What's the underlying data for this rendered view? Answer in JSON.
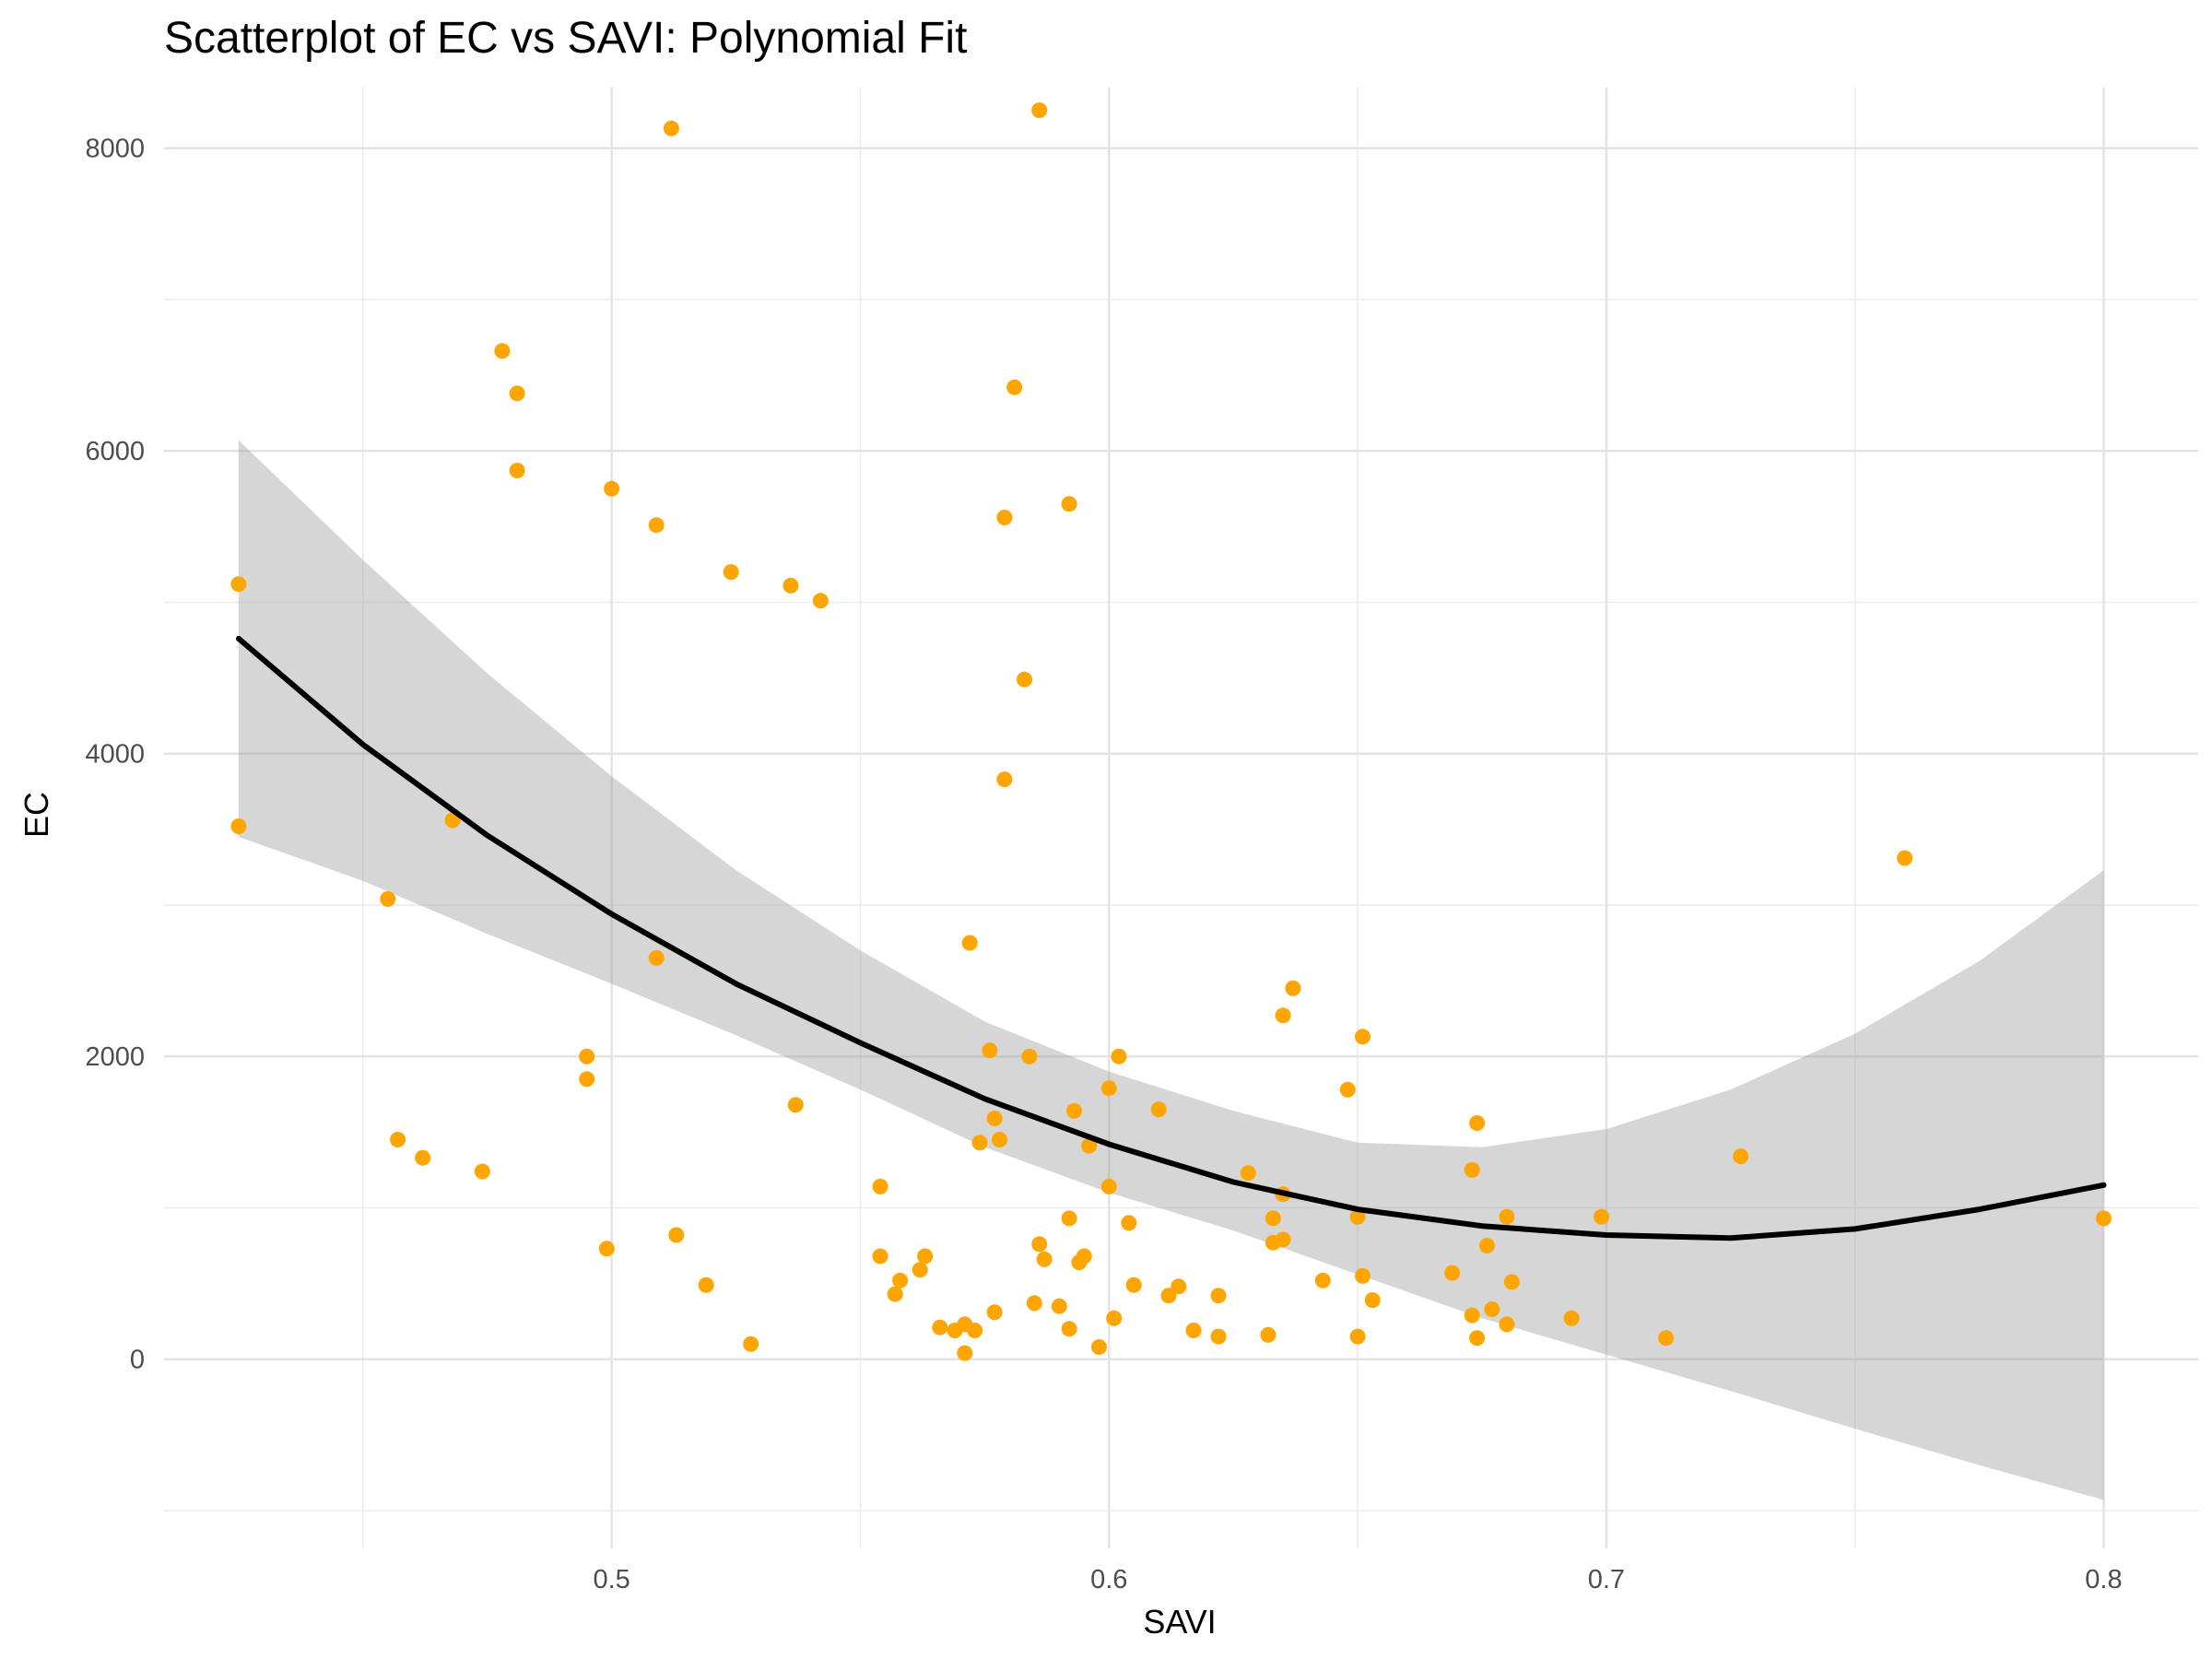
{
  "chart_data": {
    "type": "scatter",
    "title": "Scatterplot of EC vs SAVI: Polynomial Fit",
    "xlabel": "SAVI",
    "ylabel": "EC",
    "xlim": [
      0.41,
      0.819
    ],
    "ylim": [
      -1250,
      8400
    ],
    "x_ticks": [
      0.5,
      0.6,
      0.7,
      0.8
    ],
    "x_tick_labels": [
      "0.5",
      "0.6",
      "0.7",
      "0.8"
    ],
    "y_ticks": [
      0,
      2000,
      4000,
      6000,
      8000
    ],
    "y_tick_labels": [
      "0",
      "2000",
      "4000",
      "6000",
      "8000"
    ],
    "grid": true,
    "legend": "none",
    "colors": {
      "points": "#FFA500",
      "fit": "#000000",
      "band": "#999999"
    },
    "series": [
      {
        "points": [
          [
            0.425,
            5120
          ],
          [
            0.425,
            3520
          ],
          [
            0.455,
            3040
          ],
          [
            0.457,
            1450
          ],
          [
            0.462,
            1330
          ],
          [
            0.468,
            3560
          ],
          [
            0.474,
            1240
          ],
          [
            0.478,
            6660
          ],
          [
            0.481,
            6380
          ],
          [
            0.481,
            5870
          ],
          [
            0.495,
            2000
          ],
          [
            0.495,
            1850
          ],
          [
            0.499,
            730
          ],
          [
            0.5,
            5750
          ],
          [
            0.509,
            5510
          ],
          [
            0.509,
            2650
          ],
          [
            0.512,
            8130
          ],
          [
            0.513,
            820
          ],
          [
            0.519,
            490
          ],
          [
            0.524,
            5200
          ],
          [
            0.528,
            100
          ],
          [
            0.536,
            5110
          ],
          [
            0.537,
            1680
          ],
          [
            0.542,
            5010
          ],
          [
            0.554,
            1140
          ],
          [
            0.554,
            680
          ],
          [
            0.557,
            430
          ],
          [
            0.558,
            520
          ],
          [
            0.562,
            590
          ],
          [
            0.563,
            680
          ],
          [
            0.566,
            210
          ],
          [
            0.569,
            190
          ],
          [
            0.571,
            230
          ],
          [
            0.571,
            40
          ],
          [
            0.572,
            2750
          ],
          [
            0.573,
            190
          ],
          [
            0.574,
            1430
          ],
          [
            0.576,
            2040
          ],
          [
            0.577,
            310
          ],
          [
            0.577,
            1590
          ],
          [
            0.578,
            1450
          ],
          [
            0.579,
            3830
          ],
          [
            0.579,
            5560
          ],
          [
            0.581,
            6420
          ],
          [
            0.583,
            4490
          ],
          [
            0.584,
            2000
          ],
          [
            0.585,
            370
          ],
          [
            0.586,
            760
          ],
          [
            0.586,
            8250
          ],
          [
            0.587,
            660
          ],
          [
            0.59,
            350
          ],
          [
            0.592,
            5650
          ],
          [
            0.592,
            930
          ],
          [
            0.592,
            200
          ],
          [
            0.593,
            1640
          ],
          [
            0.594,
            640
          ],
          [
            0.595,
            680
          ],
          [
            0.596,
            1410
          ],
          [
            0.598,
            80
          ],
          [
            0.6,
            1790
          ],
          [
            0.6,
            1140
          ],
          [
            0.601,
            270
          ],
          [
            0.602,
            2000
          ],
          [
            0.604,
            900
          ],
          [
            0.605,
            490
          ],
          [
            0.61,
            1650
          ],
          [
            0.612,
            420
          ],
          [
            0.614,
            480
          ],
          [
            0.617,
            190
          ],
          [
            0.622,
            150
          ],
          [
            0.622,
            420
          ],
          [
            0.628,
            1230
          ],
          [
            0.632,
            160
          ],
          [
            0.633,
            930
          ],
          [
            0.633,
            770
          ],
          [
            0.635,
            2270
          ],
          [
            0.635,
            1090
          ],
          [
            0.635,
            790
          ],
          [
            0.637,
            2450
          ],
          [
            0.643,
            520
          ],
          [
            0.648,
            1780
          ],
          [
            0.65,
            940
          ],
          [
            0.65,
            150
          ],
          [
            0.651,
            2130
          ],
          [
            0.651,
            550
          ],
          [
            0.653,
            390
          ],
          [
            0.669,
            570
          ],
          [
            0.673,
            1250
          ],
          [
            0.673,
            290
          ],
          [
            0.674,
            1560
          ],
          [
            0.674,
            140
          ],
          [
            0.676,
            750
          ],
          [
            0.677,
            330
          ],
          [
            0.68,
            940
          ],
          [
            0.68,
            230
          ],
          [
            0.681,
            510
          ],
          [
            0.693,
            270
          ],
          [
            0.699,
            940
          ],
          [
            0.712,
            140
          ],
          [
            0.727,
            1340
          ],
          [
            0.76,
            3310
          ],
          [
            0.8,
            930
          ]
        ]
      }
    ],
    "fit": {
      "method": "polynomial (degree 2)",
      "x": [
        0.425,
        0.45,
        0.475,
        0.5,
        0.525,
        0.55,
        0.575,
        0.6,
        0.625,
        0.65,
        0.675,
        0.7,
        0.725,
        0.75,
        0.775,
        0.8
      ],
      "y": [
        4760,
        4060,
        3460,
        2940,
        2480,
        2090,
        1720,
        1420,
        1170,
        990,
        880,
        820,
        800,
        860,
        990,
        1150
      ],
      "lower": [
        3450,
        3160,
        2810,
        2480,
        2140,
        1780,
        1400,
        1100,
        850,
        560,
        270,
        30,
        -210,
        -460,
        -700,
        -930
      ],
      "upper": [
        6070,
        5280,
        4530,
        3850,
        3230,
        2700,
        2230,
        1900,
        1640,
        1430,
        1400,
        1520,
        1780,
        2150,
        2630,
        3230
      ]
    }
  }
}
